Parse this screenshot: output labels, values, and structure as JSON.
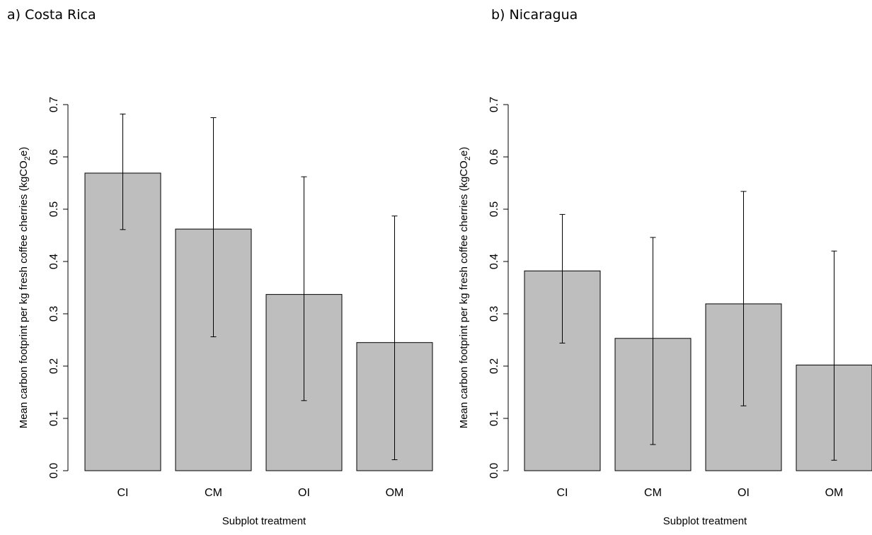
{
  "chart_data": [
    {
      "type": "bar",
      "title": "a) Costa Rica",
      "categories": [
        "CI",
        "CM",
        "OI",
        "OM"
      ],
      "values": [
        0.569,
        0.462,
        0.337,
        0.245
      ],
      "error_low": [
        0.461,
        0.256,
        0.134,
        0.021
      ],
      "error_high": [
        0.682,
        0.675,
        0.562,
        0.487
      ],
      "xlabel": "Subplot treatment",
      "ylabel_main": "Mean carbon footprint per kg fresh coffee cherries (kgCO",
      "ylabel_sub": "2",
      "ylabel_tail": "e)",
      "ylim": [
        0,
        0.7
      ],
      "yticks": [
        "0.0",
        "0.1",
        "0.2",
        "0.3",
        "0.4",
        "0.5",
        "0.6",
        "0.7"
      ],
      "bar_color": "#bebebe",
      "grid": false
    },
    {
      "type": "bar",
      "title": "b) Nicaragua",
      "categories": [
        "CI",
        "CM",
        "OI",
        "OM"
      ],
      "values": [
        0.382,
        0.253,
        0.319,
        0.202
      ],
      "error_low": [
        0.244,
        0.05,
        0.124,
        0.02
      ],
      "error_high": [
        0.49,
        0.446,
        0.534,
        0.42
      ],
      "xlabel": "Subplot treatment",
      "ylabel_main": "Mean carbon footprint per kg fresh coffee cherries (kgCO",
      "ylabel_sub": "2",
      "ylabel_tail": "e)",
      "ylim": [
        0,
        0.7
      ],
      "yticks": [
        "0.0",
        "0.1",
        "0.2",
        "0.3",
        "0.4",
        "0.5",
        "0.6",
        "0.7"
      ],
      "bar_color": "#bebebe",
      "grid": false
    }
  ]
}
